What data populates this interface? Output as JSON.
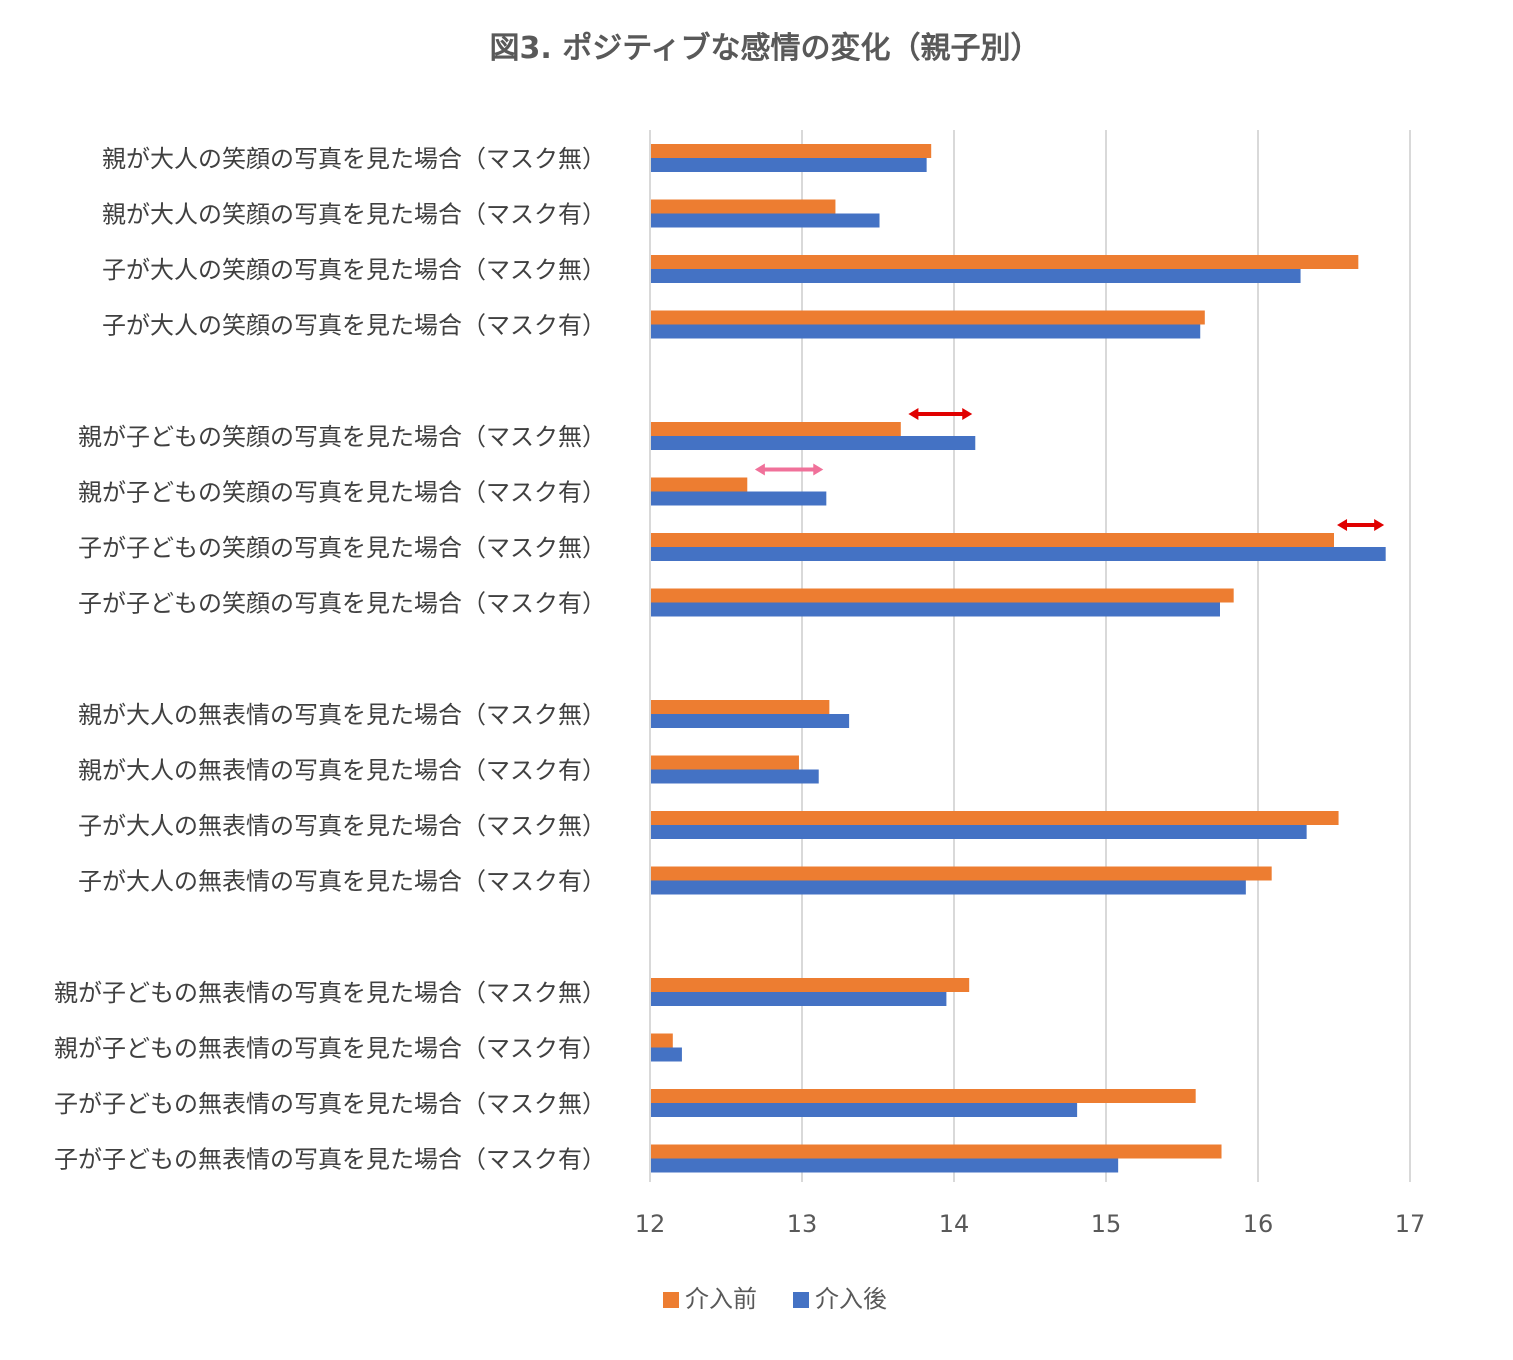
{
  "chart_data": {
    "type": "bar",
    "orientation": "horizontal",
    "title": "図3. ポジティブな感情の変化（親子別）",
    "xlabel": "",
    "ylabel": "",
    "xlim": [
      12,
      17
    ],
    "x_ticks": [
      "12",
      "13",
      "14",
      "15",
      "16",
      "17"
    ],
    "grid": true,
    "legend_position": "bottom",
    "colors": {
      "before": "#ED7D31",
      "after": "#4472C4"
    },
    "groups": [
      {
        "categories": [
          "親が大人の笑顔の写真を見た場合（マスク無）",
          "親が大人の笑顔の写真を見た場合（マスク有）",
          "子が大人の笑顔の写真を見た場合（マスク無）",
          "子が大人の笑顔の写真を見た場合（マスク有）"
        ],
        "before": [
          13.85,
          13.22,
          16.66,
          15.65
        ],
        "after": [
          13.82,
          13.51,
          16.28,
          15.62
        ]
      },
      {
        "categories": [
          "親が子どもの笑顔の写真を見た場合（マスク無）",
          "親が子どもの笑顔の写真を見た場合（マスク有）",
          "子が子どもの笑顔の写真を見た場合（マスク無）",
          "子が子どもの笑顔の写真を見た場合（マスク有）"
        ],
        "before": [
          13.65,
          12.64,
          16.5,
          15.84
        ],
        "after": [
          14.14,
          13.16,
          16.84,
          15.75
        ]
      },
      {
        "categories": [
          "親が大人の無表情の写真を見た場合（マスク無）",
          "親が大人の無表情の写真を見た場合（マスク有）",
          "子が大人の無表情の写真を見た場合（マスク無）",
          "子が大人の無表情の写真を見た場合（マスク有）"
        ],
        "before": [
          13.18,
          12.98,
          16.53,
          16.09
        ],
        "after": [
          13.31,
          13.11,
          16.32,
          15.92
        ]
      },
      {
        "categories": [
          "親が子どもの無表情の写真を見た場合（マスク無）",
          "親が子どもの無表情の写真を見た場合（マスク有）",
          "子が子どもの無表情の写真を見た場合（マスク無）",
          "子が子どもの無表情の写真を見た場合（マスク有）"
        ],
        "before": [
          14.1,
          12.15,
          15.59,
          15.76
        ],
        "after": [
          13.95,
          12.21,
          14.81,
          15.08
        ]
      }
    ],
    "series": [
      {
        "key": "before",
        "name": "介入前"
      },
      {
        "key": "after",
        "name": "介入後"
      }
    ],
    "annotations": [
      {
        "type": "double-arrow",
        "from": 13.7,
        "to": 14.12,
        "row": "親が子どもの笑顔の写真を見た場合（マスク無）",
        "color": "#E00000"
      },
      {
        "type": "double-arrow",
        "from": 12.69,
        "to": 13.14,
        "row": "親が子どもの笑顔の写真を見た場合（マスク有）",
        "color": "#F0719A"
      },
      {
        "type": "double-arrow",
        "from": 16.52,
        "to": 16.83,
        "row": "子が子どもの笑顔の写真を見た場合（マスク無）",
        "color": "#E00000"
      }
    ]
  }
}
